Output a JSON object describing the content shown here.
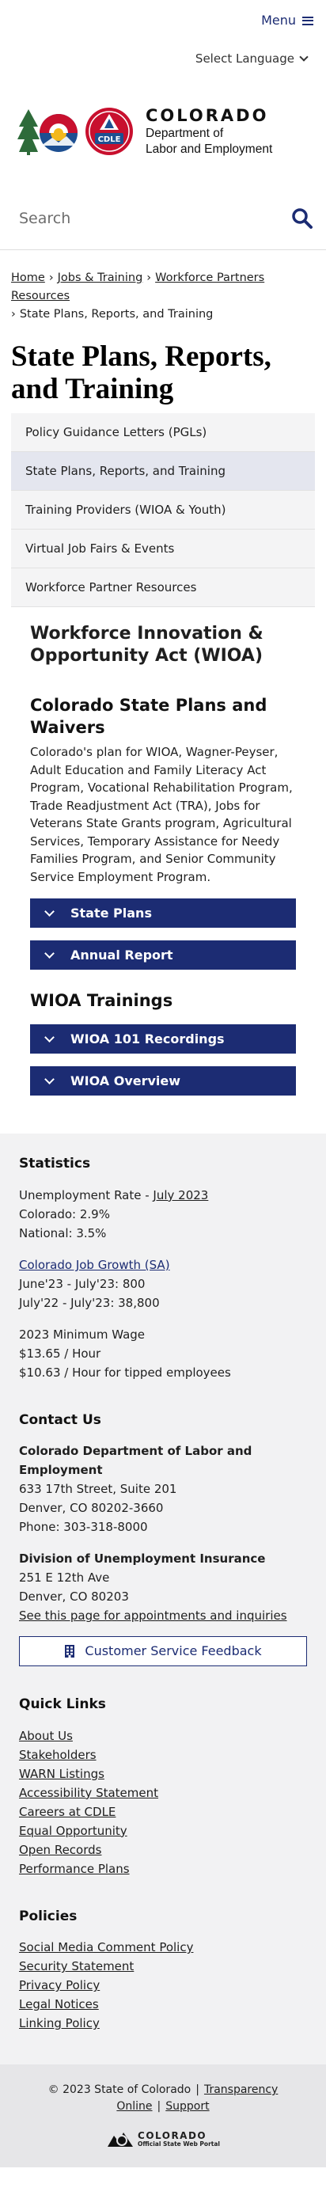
{
  "header": {
    "menu_label": "Menu",
    "language_label": "Select Language",
    "logo": {
      "state_name": "COLORADO",
      "dept_line1": "Department of",
      "dept_line2": "Labor and Employment",
      "badge_text": "CDLE"
    },
    "search_placeholder": "Search"
  },
  "breadcrumb": {
    "items": [
      "Home",
      "Jobs & Training",
      "Workforce Partners Resources"
    ],
    "current": "State Plans, Reports, and Training"
  },
  "page_title": "State Plans, Reports, and Training",
  "sidenav": {
    "items": [
      "Policy Guidance Letters (PGLs)",
      "State Plans, Reports, and Training",
      "Training Providers (WIOA & Youth)",
      "Virtual Job Fairs & Events",
      "Workforce Partner Resources"
    ]
  },
  "main": {
    "wioa_title": "Workforce Innovation & Opportunity Act (WIOA)",
    "plans_heading": "Colorado State Plans and Waivers",
    "plans_text": "Colorado's plan for WIOA, Wagner-Peyser, Adult Education and Family Literacy Act Program, Vocational Rehabilitation Program, Trade Readjustment Act (TRA), Jobs for Veterans State Grants program, Agricultural Services, Temporary Assistance for Needy Families Program, and Senior Community Service Employment Program.",
    "accordions_1": [
      "State Plans",
      "Annual Report"
    ],
    "trainings_heading": "WIOA Trainings",
    "accordions_2": [
      "WIOA 101 Recordings",
      "WIOA Overview"
    ]
  },
  "footer": {
    "statistics": {
      "heading": "Statistics",
      "unemployment_prefix": "Unemployment Rate - ",
      "unemployment_link": "July 2023",
      "colorado": "Colorado: 2.9%",
      "national": "National: 3.5%",
      "job_growth_link": "Colorado Job Growth (SA)",
      "growth_1": "June'23 - July'23: 800",
      "growth_2": "July'22 - July'23: 38,800",
      "wage_title": "2023 Minimum Wage",
      "wage_1": "$13.65 / Hour",
      "wage_2": "$10.63 / Hour for tipped employees"
    },
    "contact": {
      "heading": "Contact Us",
      "org_name": "Colorado Department of Labor and Employment",
      "address1": "633 17th Street, Suite 201",
      "address2": "Denver, CO  80202-3660",
      "phone": "Phone: 303-318-8000",
      "ui_name": "Division of Unemployment Insurance",
      "ui_address1": "251 E 12th Ave",
      "ui_address2": "Denver, CO  80203",
      "ui_link": "See this page for appointments and inquiries",
      "feedback_button": "Customer Service Feedback"
    },
    "quick_links": {
      "heading": "Quick Links",
      "items": [
        "About Us",
        "Stakeholders",
        "WARN Listings",
        "Accessibility Statement",
        "Careers at CDLE",
        "Equal Opportunity",
        "Open Records",
        "Performance Plans"
      ]
    },
    "policies": {
      "heading": "Policies",
      "items": [
        "Social Media Comment Policy",
        "Security Statement",
        "Privacy Policy",
        "Legal Notices",
        "Linking Policy"
      ]
    }
  },
  "bottom": {
    "copyright": "© 2023 State of Colorado",
    "transparency": "Transparency Online",
    "support": "Support",
    "portal_name": "COLORADO",
    "portal_sub": "Official State Web Portal"
  },
  "colors": {
    "brand_navy": "#1c2c73",
    "co_red": "#c8102e",
    "co_gold": "#f3b81c",
    "co_blue": "#1d4f91",
    "tree_green": "#2e6b3a"
  }
}
